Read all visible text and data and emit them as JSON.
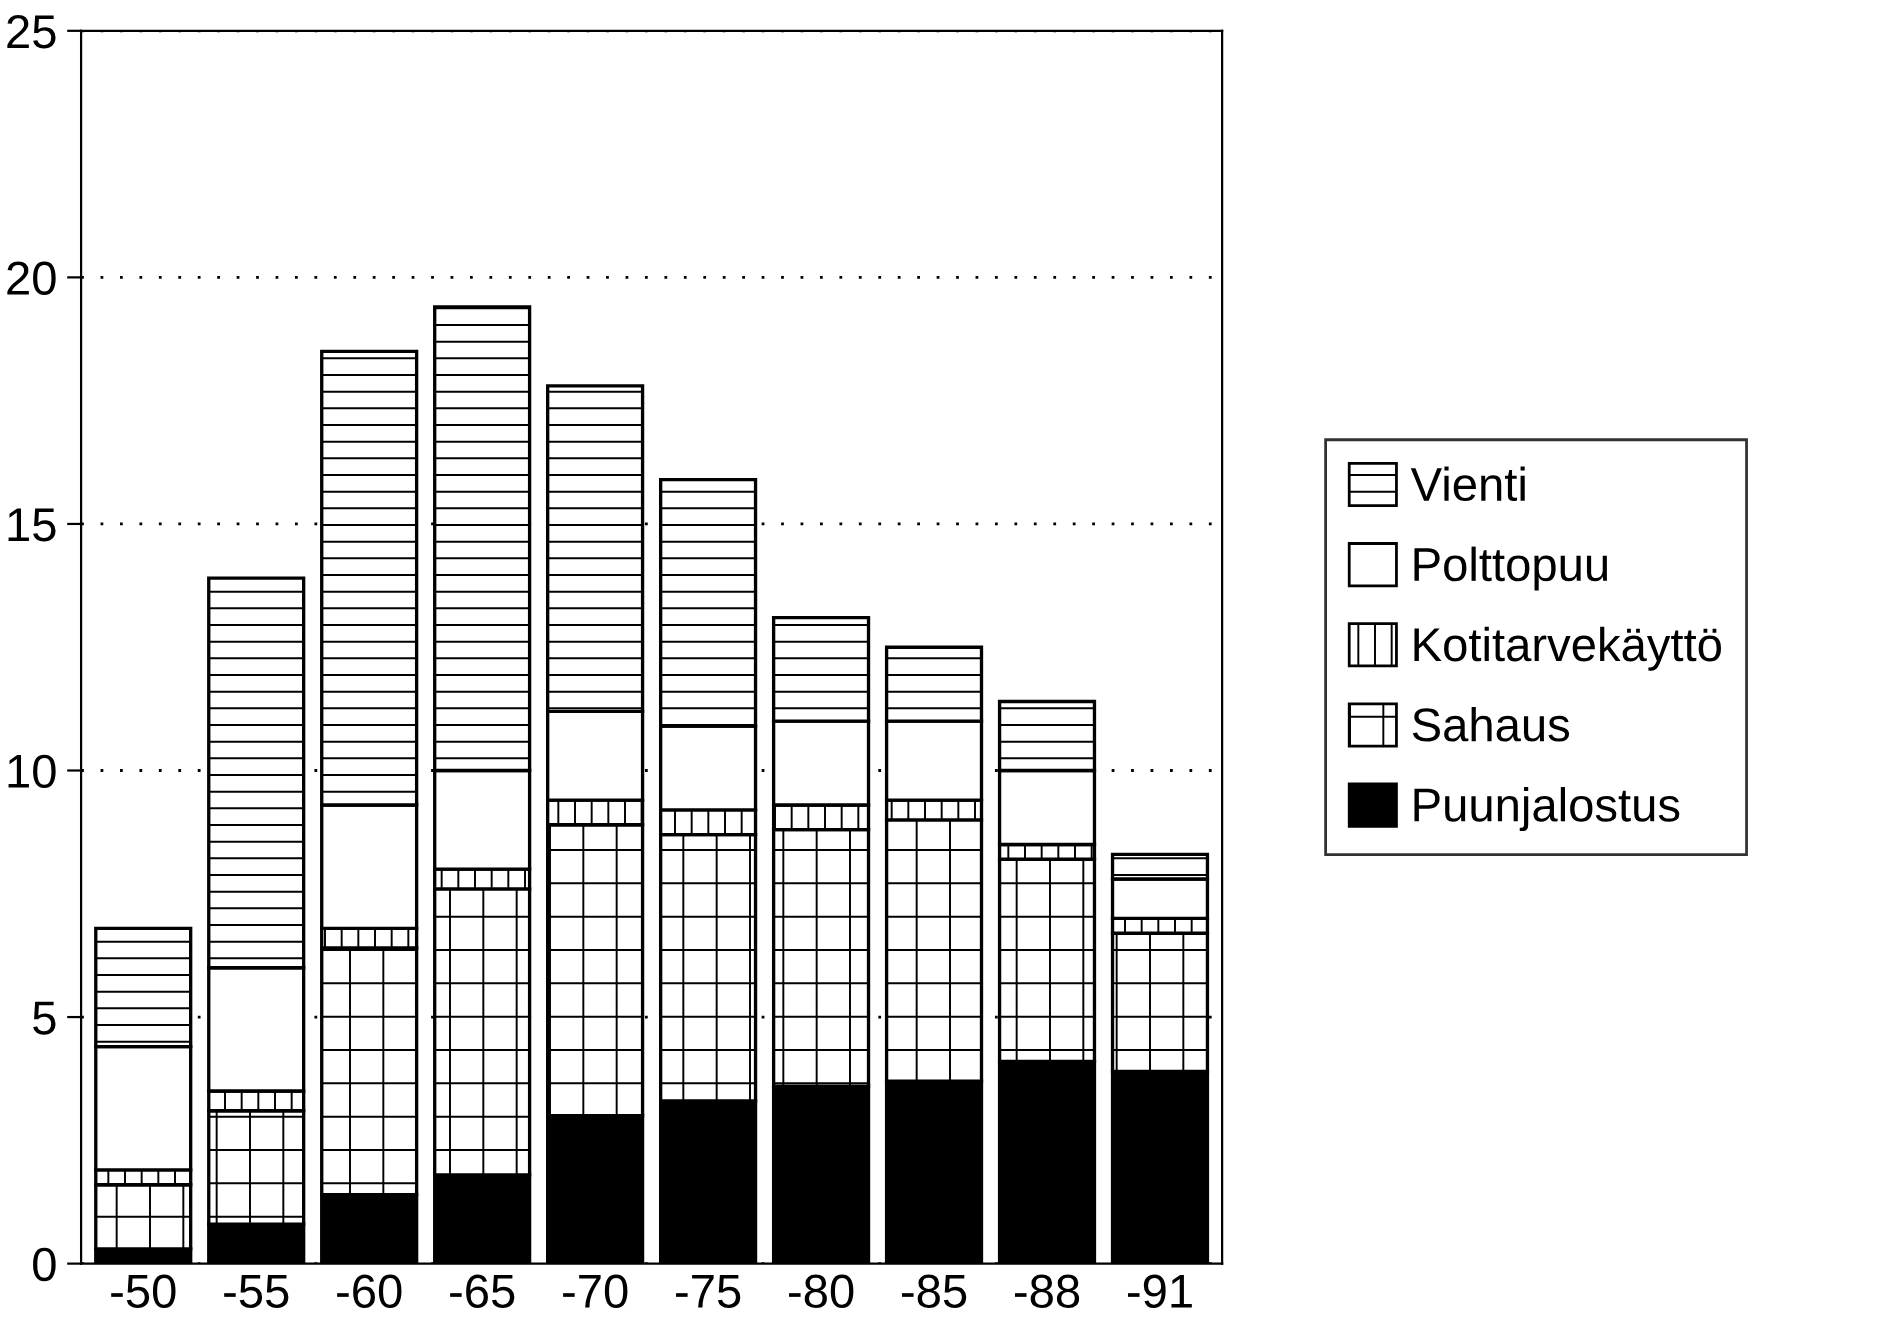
{
  "chart_data": {
    "type": "bar",
    "stacked": true,
    "categories": [
      "-50",
      "-55",
      "-60",
      "-65",
      "-70",
      "-75",
      "-80",
      "-85",
      "-88",
      "-91"
    ],
    "series": [
      {
        "name": "Puunjalostus",
        "color": "#000000",
        "values": [
          0.3,
          0.8,
          1.4,
          1.8,
          3.0,
          3.3,
          3.6,
          3.7,
          4.1,
          3.9
        ]
      },
      {
        "name": "Sahaus",
        "color": "#ffffff",
        "values": [
          1.3,
          2.3,
          5.0,
          5.8,
          5.9,
          5.4,
          5.2,
          5.3,
          4.1,
          2.8
        ]
      },
      {
        "name": "Kotitarvekäyttö",
        "color": "#ffffff",
        "values": [
          0.3,
          0.4,
          0.4,
          0.4,
          0.5,
          0.5,
          0.5,
          0.4,
          0.3,
          0.3
        ]
      },
      {
        "name": "Polttopuu",
        "color": "#ffffff",
        "values": [
          2.5,
          2.5,
          2.5,
          2.0,
          1.8,
          1.7,
          1.7,
          1.6,
          1.5,
          0.8
        ]
      },
      {
        "name": "Vienti",
        "color": "#ffffff",
        "values": [
          2.4,
          7.9,
          9.2,
          9.4,
          6.6,
          5.0,
          2.1,
          1.5,
          1.4,
          0.5
        ]
      }
    ],
    "ylim": [
      0,
      25
    ],
    "yticks": [
      0,
      5,
      10,
      15,
      20,
      25
    ],
    "grid": "y",
    "legend": "right"
  }
}
